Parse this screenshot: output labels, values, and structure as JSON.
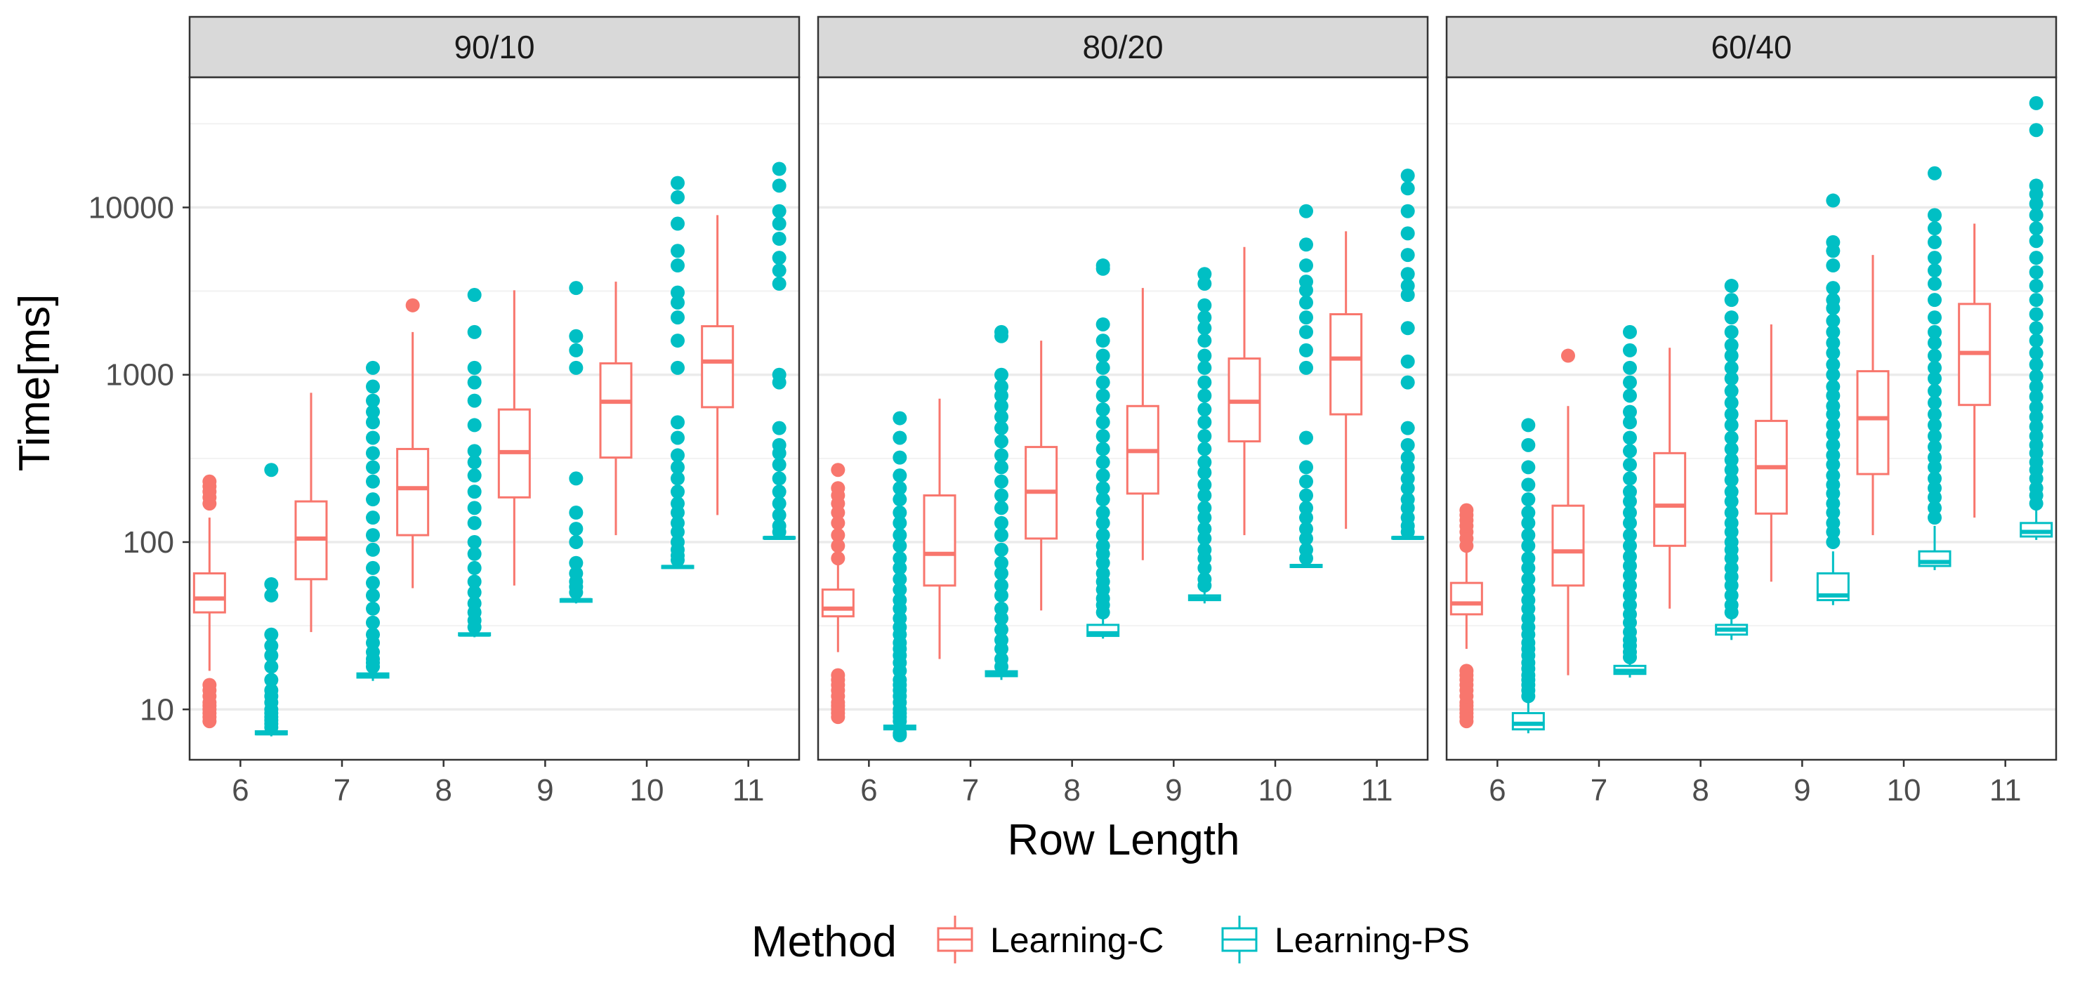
{
  "chart_data": {
    "type": "box",
    "x_label": "Row Length",
    "y_label": "Time[ms]",
    "y_scale": "log10",
    "y_ticks": [
      10,
      100,
      1000,
      10000
    ],
    "y_tick_labels": [
      "10",
      "100",
      "1000",
      "10000"
    ],
    "ylim": [
      5,
      60000
    ],
    "categories": [
      "6",
      "7",
      "8",
      "9",
      "10",
      "11"
    ],
    "legend": {
      "title": "Method",
      "position": "bottom"
    },
    "series": [
      {
        "name": "Learning-C",
        "color": "#F8766D"
      },
      {
        "name": "Learning-PS",
        "color": "#00BFC4"
      }
    ],
    "grid": true,
    "facets": [
      {
        "label": "90/10",
        "boxes": {
          "Learning-C": [
            {
              "x": "6",
              "lo": 17,
              "q1": 38,
              "med": 46,
              "q3": 65,
              "hi": 140,
              "outliers": [
                8.5,
                9,
                9.5,
                10,
                10.5,
                11,
                12,
                13,
                14,
                170,
                185,
                200,
                215,
                230
              ]
            },
            {
              "x": "7",
              "lo": 29,
              "q1": 60,
              "med": 105,
              "q3": 175,
              "hi": 780,
              "outliers": []
            },
            {
              "x": "8",
              "lo": 53,
              "q1": 110,
              "med": 210,
              "q3": 360,
              "hi": 1800,
              "outliers": [
                2600
              ]
            },
            {
              "x": "9",
              "lo": 55,
              "q1": 185,
              "med": 345,
              "q3": 620,
              "hi": 3200,
              "outliers": []
            },
            {
              "x": "10",
              "lo": 110,
              "q1": 320,
              "med": 690,
              "q3": 1170,
              "hi": 3600,
              "outliers": []
            },
            {
              "x": "11",
              "lo": 145,
              "q1": 640,
              "med": 1200,
              "q3": 1950,
              "hi": 9000,
              "outliers": []
            }
          ],
          "Learning-PS": [
            {
              "x": "6",
              "lo": 6.9,
              "q1": 7.1,
              "med": 7.2,
              "q3": 7.4,
              "hi": 7.6,
              "outliers": [
                7.8,
                8.2,
                8.6,
                9,
                9.5,
                10,
                11,
                12,
                13,
                15,
                18,
                21,
                24,
                28,
                48,
                56,
                270
              ]
            },
            {
              "x": "7",
              "lo": 14.8,
              "q1": 15.5,
              "med": 16,
              "q3": 16.4,
              "hi": 17,
              "outliers": [
                18,
                19,
                20,
                22,
                25,
                28,
                33,
                40,
                48,
                57,
                70,
                90,
                110,
                140,
                180,
                230,
                280,
                340,
                420,
                520,
                600,
                700,
                850,
                1100
              ]
            },
            {
              "x": "8",
              "lo": 27,
              "q1": 27.7,
              "med": 28,
              "q3": 28.5,
              "hi": 29.5,
              "outliers": [
                31,
                34,
                38,
                43,
                50,
                58,
                70,
                85,
                100,
                130,
                160,
                200,
                250,
                300,
                350,
                500,
                700,
                900,
                1100,
                1800,
                3000
              ]
            },
            {
              "x": "9",
              "lo": 43,
              "q1": 44,
              "med": 45,
              "q3": 45.5,
              "hi": 47,
              "outliers": [
                50,
                54,
                58,
                65,
                75,
                100,
                120,
                150,
                240,
                1100,
                1400,
                1700,
                3300
              ]
            },
            {
              "x": "10",
              "lo": 69,
              "q1": 70,
              "med": 71,
              "q3": 72,
              "hi": 74,
              "outliers": [
                78,
                83,
                90,
                100,
                115,
                130,
                150,
                170,
                200,
                240,
                280,
                330,
                420,
                520,
                1100,
                1600,
                2200,
                2700,
                3100,
                4500,
                5500,
                8000,
                11500,
                14000
              ]
            },
            {
              "x": "11",
              "lo": 104,
              "q1": 105,
              "med": 106,
              "q3": 107,
              "hi": 109,
              "outliers": [
                115,
                125,
                145,
                170,
                200,
                240,
                290,
                340,
                380,
                480,
                900,
                1000,
                3500,
                4200,
                5000,
                6500,
                8000,
                9500,
                13500,
                17000
              ]
            }
          ]
        }
      },
      {
        "label": "80/20",
        "boxes": {
          "Learning-C": [
            {
              "x": "6",
              "lo": 22,
              "q1": 36,
              "med": 40,
              "q3": 52,
              "hi": 78,
              "outliers": [
                9,
                9.5,
                10,
                10.5,
                11,
                12,
                13,
                14,
                15,
                16,
                80,
                95,
                110,
                130,
                150,
                170,
                190,
                210,
                270
              ]
            },
            {
              "x": "7",
              "lo": 20,
              "q1": 55,
              "med": 85,
              "q3": 190,
              "hi": 720,
              "outliers": []
            },
            {
              "x": "8",
              "lo": 39,
              "q1": 105,
              "med": 200,
              "q3": 370,
              "hi": 1600,
              "outliers": []
            },
            {
              "x": "9",
              "lo": 78,
              "q1": 195,
              "med": 350,
              "q3": 650,
              "hi": 3300,
              "outliers": []
            },
            {
              "x": "10",
              "lo": 110,
              "q1": 400,
              "med": 690,
              "q3": 1250,
              "hi": 5800,
              "outliers": []
            },
            {
              "x": "11",
              "lo": 120,
              "q1": 580,
              "med": 1250,
              "q3": 2300,
              "hi": 7200,
              "outliers": []
            }
          ],
          "Learning-PS": [
            {
              "x": "6",
              "lo": 7.3,
              "q1": 7.6,
              "med": 7.8,
              "q3": 8.0,
              "hi": 8.2,
              "outliers": [
                7,
                7.2,
                8.5,
                9,
                9.5,
                10,
                11,
                12,
                13,
                14,
                15,
                17,
                19,
                21,
                23,
                25,
                28,
                31,
                35,
                40,
                45,
                52,
                60,
                70,
                80,
                95,
                110,
                130,
                150,
                180,
                210,
                250,
                320,
                420,
                550
              ]
            },
            {
              "x": "7",
              "lo": 15,
              "q1": 15.8,
              "med": 16.3,
              "q3": 16.9,
              "hi": 17.5,
              "outliers": [
                18,
                20,
                23,
                26,
                30,
                35,
                40,
                48,
                55,
                65,
                75,
                90,
                110,
                130,
                160,
                190,
                230,
                280,
                330,
                400,
                480,
                560,
                650,
                750,
                850,
                1000,
                1700,
                1800
              ]
            },
            {
              "x": "8",
              "lo": 26.5,
              "q1": 27.5,
              "med": 28.5,
              "q3": 32,
              "hi": 36,
              "outliers": [
                38,
                42,
                46,
                52,
                58,
                65,
                75,
                85,
                95,
                110,
                130,
                150,
                180,
                210,
                250,
                300,
                360,
                430,
                520,
                620,
                750,
                900,
                1100,
                1300,
                1600,
                2000,
                4300,
                4500
              ]
            },
            {
              "x": "9",
              "lo": 43,
              "q1": 45,
              "med": 46,
              "q3": 48,
              "hi": 52,
              "outliers": [
                55,
                60,
                70,
                80,
                90,
                105,
                120,
                140,
                160,
                190,
                220,
                260,
                300,
                360,
                430,
                520,
                620,
                750,
                900,
                1100,
                1300,
                1600,
                1900,
                2200,
                2600,
                3500,
                4000
              ]
            },
            {
              "x": "10",
              "lo": 70,
              "q1": 71,
              "med": 72,
              "q3": 73,
              "hi": 75,
              "outliers": [
                80,
                90,
                105,
                120,
                140,
                160,
                190,
                230,
                280,
                420,
                1100,
                1400,
                1800,
                2200,
                2700,
                3200,
                3600,
                4500,
                6000,
                9500
              ]
            },
            {
              "x": "11",
              "lo": 104,
              "q1": 105,
              "med": 106,
              "q3": 107,
              "hi": 109,
              "outliers": [
                115,
                125,
                140,
                160,
                180,
                210,
                240,
                280,
                320,
                380,
                480,
                900,
                1200,
                1900,
                3000,
                3400,
                4000,
                5200,
                7000,
                9500,
                13000,
                15500
              ]
            }
          ]
        }
      },
      {
        "label": "60/40",
        "boxes": {
          "Learning-C": [
            {
              "x": "6",
              "lo": 23,
              "q1": 37,
              "med": 43,
              "q3": 57,
              "hi": 90,
              "outliers": [
                8.5,
                9,
                9.5,
                10,
                10.5,
                11,
                12,
                13,
                14,
                15,
                16,
                17,
                95,
                105,
                115,
                125,
                135,
                145,
                155
              ]
            },
            {
              "x": "7",
              "lo": 16,
              "q1": 55,
              "med": 88,
              "q3": 165,
              "hi": 650,
              "outliers": [
                1300
              ]
            },
            {
              "x": "8",
              "lo": 40,
              "q1": 95,
              "med": 165,
              "q3": 340,
              "hi": 1450,
              "outliers": []
            },
            {
              "x": "9",
              "lo": 58,
              "q1": 148,
              "med": 280,
              "q3": 530,
              "hi": 2000,
              "outliers": []
            },
            {
              "x": "10",
              "lo": 110,
              "q1": 255,
              "med": 550,
              "q3": 1050,
              "hi": 5200,
              "outliers": []
            },
            {
              "x": "11",
              "lo": 140,
              "q1": 660,
              "med": 1350,
              "q3": 2650,
              "hi": 8000,
              "outliers": []
            }
          ],
          "Learning-PS": [
            {
              "x": "6",
              "lo": 7.2,
              "q1": 7.6,
              "med": 8.2,
              "q3": 9.5,
              "hi": 11.5,
              "outliers": [
                12,
                13,
                14,
                15,
                16,
                17.5,
                19,
                21,
                23,
                25,
                28,
                31,
                35,
                40,
                45,
                52,
                60,
                70,
                80,
                95,
                110,
                130,
                150,
                180,
                220,
                280,
                380,
                500
              ]
            },
            {
              "x": "7",
              "lo": 15.5,
              "q1": 16.3,
              "med": 17,
              "q3": 18.2,
              "hi": 19.5,
              "outliers": [
                20.5,
                22,
                24,
                26,
                29,
                33,
                37,
                42,
                48,
                55,
                63,
                72,
                82,
                95,
                110,
                130,
                150,
                175,
                200,
                240,
                290,
                350,
                420,
                520,
                600,
                750,
                900,
                1100,
                1400,
                1800
              ]
            },
            {
              "x": "8",
              "lo": 26,
              "q1": 28,
              "med": 30,
              "q3": 32,
              "hi": 35,
              "outliers": [
                38,
                42,
                48,
                55,
                62,
                70,
                80,
                90,
                100,
                115,
                130,
                150,
                175,
                200,
                235,
                270,
                310,
                360,
                420,
                500,
                580,
                680,
                800,
                950,
                1100,
                1300,
                1500,
                1800,
                2200,
                2800,
                3400
              ]
            },
            {
              "x": "9",
              "lo": 42,
              "q1": 45,
              "med": 48,
              "q3": 65,
              "hi": 88,
              "outliers": [
                100,
                115,
                130,
                150,
                170,
                195,
                220,
                250,
                290,
                330,
                380,
                440,
                500,
                580,
                650,
                750,
                850,
                1000,
                1150,
                1350,
                1550,
                1800,
                2100,
                2500,
                2800,
                3300,
                4500,
                5500,
                6200,
                11000
              ]
            },
            {
              "x": "10",
              "lo": 68,
              "q1": 72,
              "med": 76,
              "q3": 88,
              "hi": 125,
              "outliers": [
                140,
                160,
                185,
                210,
                240,
                280,
                320,
                370,
                430,
                500,
                580,
                680,
                800,
                950,
                1100,
                1300,
                1550,
                1800,
                2200,
                2800,
                3500,
                4200,
                5000,
                6200,
                7500,
                9000,
                16000
              ]
            },
            {
              "x": "11",
              "lo": 103,
              "q1": 108,
              "med": 115,
              "q3": 130,
              "hi": 155,
              "outliers": [
                170,
                190,
                210,
                240,
                270,
                300,
                340,
                380,
                430,
                490,
                560,
                640,
                740,
                850,
                980,
                1150,
                1350,
                1600,
                1900,
                2300,
                2800,
                3400,
                4100,
                5000,
                6300,
                7500,
                9000,
                10500,
                12000,
                13500,
                29000,
                42000
              ]
            }
          ]
        }
      }
    ]
  }
}
